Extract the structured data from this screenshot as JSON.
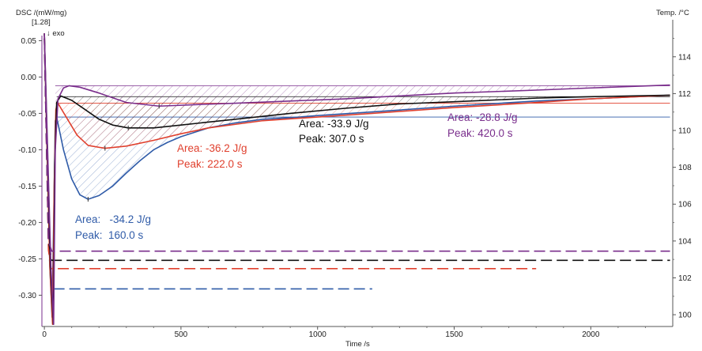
{
  "chart_data": {
    "type": "line",
    "ylabel": "DSC /(mW/mg)",
    "ylabel_scale": "[1.28]",
    "exo_marker": "↓ exo",
    "y2label": "Temp. /°C",
    "xlabel": "Time /s",
    "xlim": [
      -9,
      2300
    ],
    "ylim": [
      -0.343,
      0.057
    ],
    "y2lim": [
      99.36,
      115.15
    ],
    "xticks": [
      0,
      500,
      1000,
      1500,
      2000
    ],
    "yticks": [
      "0.05",
      "0.00",
      "-0.05",
      "-0.10",
      "-0.15",
      "-0.20",
      "-0.25",
      "-0.30"
    ],
    "yticks_values": [
      0.05,
      0,
      -0.05,
      -0.1,
      -0.15,
      -0.2,
      -0.25,
      -0.3
    ],
    "y2ticks": [
      100,
      102,
      104,
      106,
      108,
      110,
      112,
      114
    ],
    "grid": false,
    "series": [
      {
        "name": "blue",
        "color": "#2f5ba8",
        "baseline": -0.055,
        "peak_x": 160,
        "area_label": "Area:   -34.2 J/g",
        "peak_label": "Peak:  160.0 s",
        "dsc": [
          [
            0,
            0.06
          ],
          [
            20,
            -0.26
          ],
          [
            28,
            -0.33
          ],
          [
            34,
            -0.2
          ],
          [
            40,
            -0.06
          ],
          [
            45,
            -0.055
          ],
          [
            70,
            -0.1
          ],
          [
            100,
            -0.14
          ],
          [
            130,
            -0.162
          ],
          [
            160,
            -0.168
          ],
          [
            200,
            -0.163
          ],
          [
            250,
            -0.15
          ],
          [
            300,
            -0.132
          ],
          [
            350,
            -0.115
          ],
          [
            400,
            -0.1
          ],
          [
            450,
            -0.09
          ],
          [
            500,
            -0.082
          ],
          [
            600,
            -0.07
          ],
          [
            700,
            -0.063
          ],
          [
            800,
            -0.058
          ],
          [
            900,
            -0.056
          ],
          [
            1000,
            -0.053
          ],
          [
            1200,
            -0.048
          ],
          [
            1500,
            -0.04
          ],
          [
            1800,
            -0.033
          ],
          [
            2000,
            -0.03
          ],
          [
            2290,
            -0.025
          ]
        ],
        "temp": [
          [
            0,
            115
          ],
          [
            15,
            104
          ],
          [
            25,
            101.4
          ],
          [
            1200,
            101.4
          ]
        ]
      },
      {
        "name": "red",
        "color": "#e0402e",
        "baseline": -0.036,
        "peak_x": 222,
        "area_label": "Area: -36.2 J/g",
        "peak_label": "Peak: 222.0 s",
        "dsc": [
          [
            0,
            0.06
          ],
          [
            20,
            -0.26
          ],
          [
            30,
            -0.34
          ],
          [
            36,
            -0.15
          ],
          [
            42,
            -0.045
          ],
          [
            48,
            -0.035
          ],
          [
            80,
            -0.055
          ],
          [
            120,
            -0.08
          ],
          [
            160,
            -0.094
          ],
          [
            222,
            -0.098
          ],
          [
            300,
            -0.095
          ],
          [
            400,
            -0.087
          ],
          [
            500,
            -0.078
          ],
          [
            600,
            -0.07
          ],
          [
            700,
            -0.065
          ],
          [
            800,
            -0.06
          ],
          [
            1000,
            -0.055
          ],
          [
            1200,
            -0.05
          ],
          [
            1500,
            -0.042
          ],
          [
            1800,
            -0.035
          ],
          [
            2000,
            -0.03
          ],
          [
            2290,
            -0.025
          ]
        ],
        "temp": [
          [
            0,
            115
          ],
          [
            15,
            103.5
          ],
          [
            25,
            102.5
          ],
          [
            1800,
            102.5
          ]
        ]
      },
      {
        "name": "black",
        "color": "#111111",
        "baseline": -0.027,
        "peak_x": 307,
        "area_label": "Area: -33.9 J/g",
        "peak_label": "Peak: 307.0 s",
        "dsc": [
          [
            0,
            0.06
          ],
          [
            22,
            -0.26
          ],
          [
            33,
            -0.34
          ],
          [
            38,
            -0.12
          ],
          [
            45,
            -0.035
          ],
          [
            60,
            -0.026
          ],
          [
            100,
            -0.032
          ],
          [
            150,
            -0.045
          ],
          [
            200,
            -0.058
          ],
          [
            250,
            -0.066
          ],
          [
            307,
            -0.07
          ],
          [
            400,
            -0.07
          ],
          [
            500,
            -0.066
          ],
          [
            700,
            -0.058
          ],
          [
            900,
            -0.05
          ],
          [
            1100,
            -0.043
          ],
          [
            1300,
            -0.037
          ],
          [
            1500,
            -0.034
          ],
          [
            1800,
            -0.029
          ],
          [
            2000,
            -0.027
          ],
          [
            2290,
            -0.025
          ]
        ],
        "temp": [
          [
            0,
            115
          ],
          [
            15,
            104
          ],
          [
            27,
            102.95
          ],
          [
            2290,
            102.95
          ]
        ]
      },
      {
        "name": "purple",
        "color": "#7a2e8c",
        "baseline": -0.012,
        "peak_x": 420,
        "area_label": "Area: -28.8 J/g",
        "peak_label": "Peak: 420.0 s",
        "dsc": [
          [
            0,
            0.06
          ],
          [
            24,
            -0.26
          ],
          [
            34,
            -0.34
          ],
          [
            40,
            -0.1
          ],
          [
            50,
            -0.03
          ],
          [
            70,
            -0.015
          ],
          [
            90,
            -0.012
          ],
          [
            130,
            -0.014
          ],
          [
            200,
            -0.022
          ],
          [
            300,
            -0.035
          ],
          [
            420,
            -0.04
          ],
          [
            550,
            -0.038
          ],
          [
            700,
            -0.036
          ],
          [
            900,
            -0.033
          ],
          [
            1100,
            -0.03
          ],
          [
            1300,
            -0.026
          ],
          [
            1500,
            -0.022
          ],
          [
            1800,
            -0.018
          ],
          [
            2000,
            -0.015
          ],
          [
            2290,
            -0.011
          ]
        ],
        "temp": [
          [
            0,
            115
          ],
          [
            15,
            104
          ],
          [
            27,
            103.45
          ],
          [
            2290,
            103.45
          ]
        ]
      }
    ]
  }
}
